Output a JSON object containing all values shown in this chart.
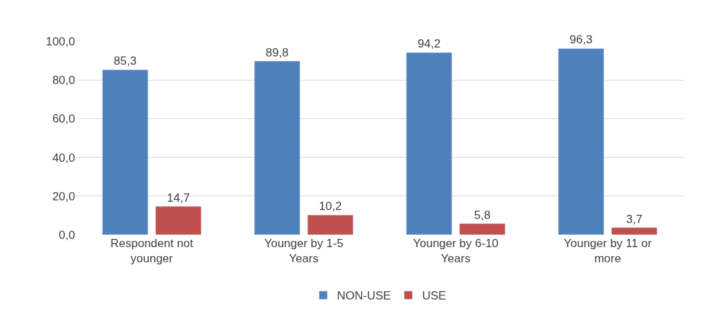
{
  "chart_data": {
    "type": "bar",
    "categories": [
      "Respondent not younger",
      "Younger by 1-5 Years",
      "Younger by 6-10 Years",
      "Younger by 11 or more"
    ],
    "series": [
      {
        "name": "NON-USE",
        "color": "#4f81bd",
        "values": [
          85.3,
          89.8,
          94.2,
          96.3
        ],
        "value_labels": [
          "85,3",
          "89,8",
          "94,2",
          "96,3"
        ]
      },
      {
        "name": "USE",
        "color": "#c0504d",
        "values": [
          14.7,
          10.2,
          5.8,
          3.7
        ],
        "value_labels": [
          "14,7",
          "10,2",
          "5,8",
          "3,7"
        ]
      }
    ],
    "ylim": [
      0,
      100
    ],
    "yticks": [
      {
        "value": 0,
        "label": "0,0"
      },
      {
        "value": 20,
        "label": "20,0"
      },
      {
        "value": 40,
        "label": "40,0"
      },
      {
        "value": 60,
        "label": "60,0"
      },
      {
        "value": 80,
        "label": "80,0"
      },
      {
        "value": 100,
        "label": "100,0"
      }
    ],
    "grid": "y",
    "legend": "bottom"
  }
}
